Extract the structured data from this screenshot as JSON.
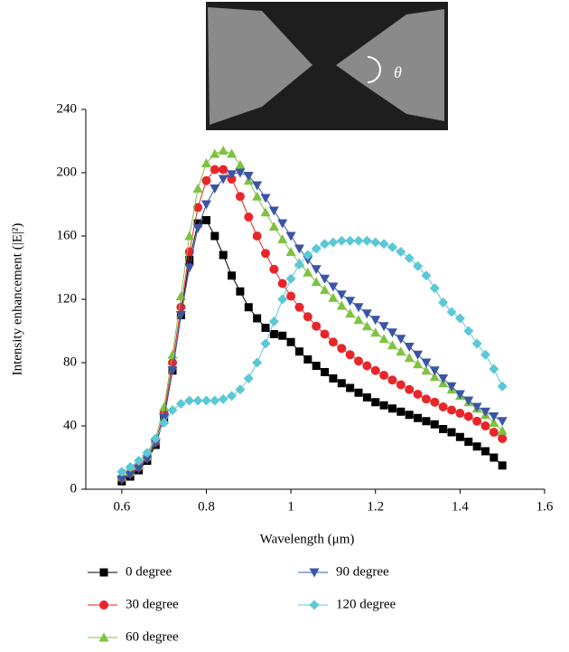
{
  "chart_data": {
    "type": "line",
    "annotation": "θ",
    "xlabel": "Wavelength (μm)",
    "ylabel": "Intensity enhancement (|E|²)",
    "xlim": [
      0.5,
      1.6
    ],
    "xticks": [
      0.6,
      0.8,
      1,
      1.2,
      1.4,
      1.6
    ],
    "ylim": [
      0,
      240
    ],
    "yticks": [
      0,
      40,
      80,
      120,
      160,
      200,
      240
    ],
    "grid": false,
    "x": [
      0.6,
      0.62,
      0.64,
      0.66,
      0.68,
      0.7,
      0.72,
      0.74,
      0.76,
      0.78,
      0.8,
      0.82,
      0.84,
      0.86,
      0.88,
      0.9,
      0.92,
      0.94,
      0.96,
      0.98,
      1.0,
      1.02,
      1.04,
      1.06,
      1.08,
      1.1,
      1.12,
      1.14,
      1.16,
      1.18,
      1.2,
      1.22,
      1.24,
      1.26,
      1.28,
      1.3,
      1.32,
      1.34,
      1.36,
      1.38,
      1.4,
      1.42,
      1.44,
      1.46,
      1.48,
      1.5
    ],
    "series": [
      {
        "name": "0 degree",
        "color": "#000000",
        "marker": "square",
        "values": [
          5,
          8,
          12,
          18,
          28,
          45,
          75,
          110,
          145,
          168,
          170,
          160,
          148,
          135,
          125,
          115,
          108,
          102,
          98,
          97,
          93,
          87,
          82,
          78,
          74,
          70,
          67,
          64,
          61,
          58,
          55,
          53,
          51,
          49,
          47,
          45,
          43,
          41,
          38,
          36,
          33,
          30,
          27,
          24,
          20,
          15
        ]
      },
      {
        "name": "30 degree",
        "color": "#e8262a",
        "marker": "circle",
        "values": [
          7,
          10,
          14,
          20,
          30,
          48,
          80,
          115,
          150,
          178,
          195,
          202,
          202,
          196,
          185,
          172,
          160,
          149,
          139,
          130,
          122,
          115,
          109,
          103,
          98,
          93,
          89,
          85,
          81,
          78,
          75,
          72,
          69,
          66,
          63,
          60,
          57,
          55,
          52,
          50,
          48,
          46,
          43,
          40,
          36,
          32
        ]
      },
      {
        "name": "60 degree",
        "color": "#7fc242",
        "marker": "triangle-up",
        "values": [
          8,
          11,
          15,
          21,
          32,
          52,
          85,
          122,
          160,
          190,
          206,
          212,
          214,
          212,
          205,
          195,
          185,
          175,
          166,
          158,
          150,
          143,
          137,
          131,
          126,
          121,
          116,
          111,
          107,
          103,
          99,
          95,
          91,
          87,
          83,
          79,
          75,
          71,
          67,
          63,
          59,
          55,
          51,
          47,
          42,
          37
        ]
      },
      {
        "name": "90 degree",
        "color": "#3b55a5",
        "marker": "triangle-down",
        "values": [
          6,
          9,
          13,
          19,
          29,
          45,
          75,
          110,
          140,
          165,
          180,
          190,
          196,
          199,
          200,
          198,
          192,
          184,
          176,
          168,
          160,
          152,
          145,
          139,
          133,
          128,
          123,
          119,
          115,
          111,
          107,
          103,
          99,
          95,
          90,
          85,
          80,
          75,
          70,
          65,
          60,
          56,
          52,
          49,
          46,
          43
        ]
      },
      {
        "name": "120 degree",
        "color": "#5bc8d6",
        "marker": "diamond",
        "values": [
          11,
          14,
          18,
          23,
          32,
          42,
          50,
          54,
          56,
          56,
          56,
          56,
          57,
          59,
          63,
          70,
          80,
          92,
          106,
          120,
          133,
          142,
          148,
          152,
          155,
          156,
          157,
          157,
          157,
          157,
          156,
          155,
          153,
          150,
          146,
          141,
          135,
          127,
          118,
          112,
          108,
          100,
          92,
          85,
          76,
          65
        ]
      }
    ]
  }
}
